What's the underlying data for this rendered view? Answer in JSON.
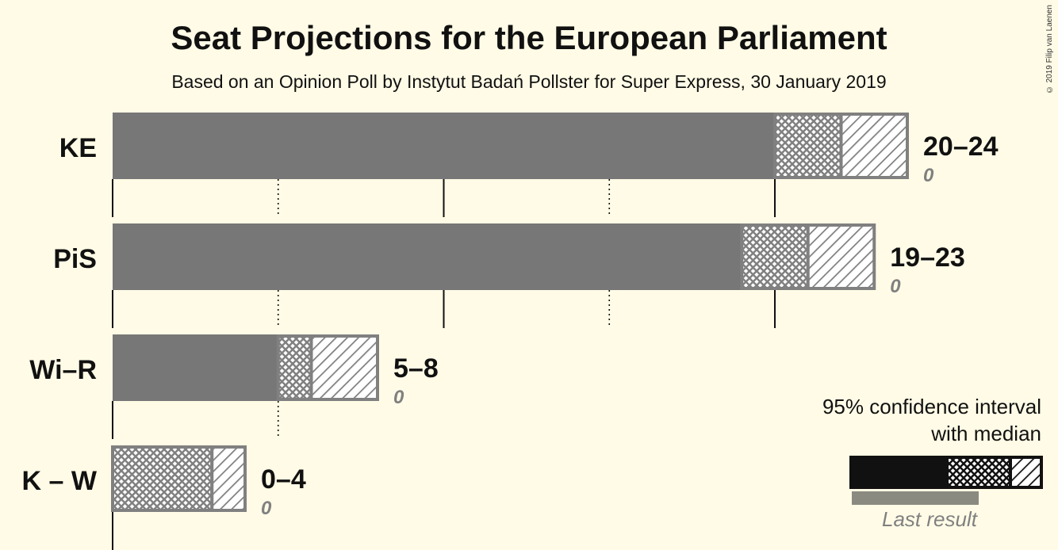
{
  "title": "Seat Projections for the European Parliament",
  "subtitle": "Based on an Opinion Poll by Instytut Badań Pollster for Super Express, 30 January 2019",
  "copyright": "© 2019 Filip van Laenen",
  "legend": {
    "line1": "95% confidence interval",
    "line2": "with median",
    "last_result": "Last result"
  },
  "colors": {
    "background": "#fffbe6",
    "bar": "#777777",
    "bar_outline": "#808080",
    "legend_bar": "#111111",
    "last_result": "#8a8a80",
    "last_result_text": "#808080"
  },
  "chart_data": {
    "type": "bar",
    "orientation": "horizontal",
    "xlim": [
      0,
      24
    ],
    "gridlines": [
      0,
      5,
      10,
      15,
      20
    ],
    "series": [
      {
        "party": "KE",
        "low": 20,
        "median": 22,
        "high": 24,
        "label": "20–24",
        "last_result": "0"
      },
      {
        "party": "PiS",
        "low": 19,
        "median": 21,
        "high": 23,
        "label": "19–23",
        "last_result": "0"
      },
      {
        "party": "Wi–R",
        "low": 5,
        "median": 6,
        "high": 8,
        "label": "5–8",
        "last_result": "0"
      },
      {
        "party": "K – W",
        "low": 0,
        "median": 3,
        "high": 4,
        "label": "0–4",
        "last_result": "0"
      }
    ]
  }
}
